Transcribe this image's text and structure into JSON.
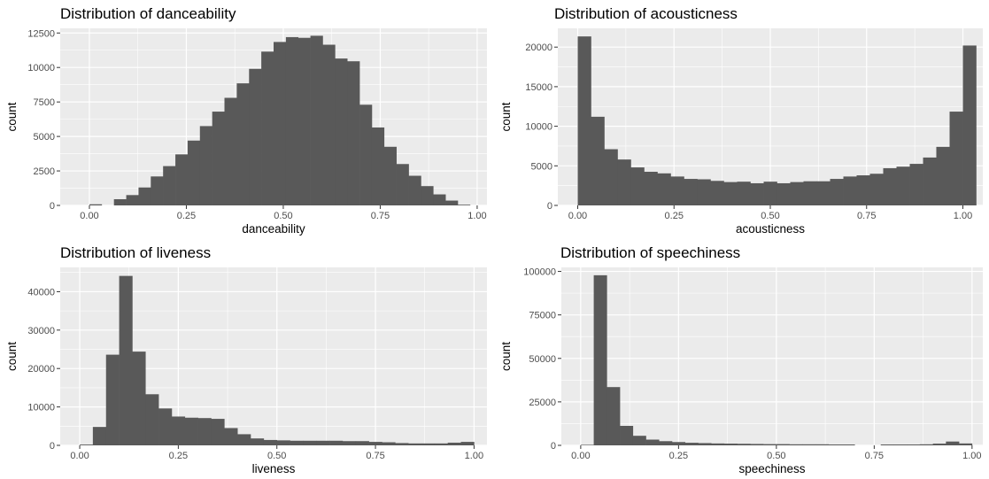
{
  "chart_data": [
    {
      "type": "bar",
      "title": "Distribution of danceability",
      "xlabel": "danceability",
      "ylabel": "count",
      "xlim": [
        -0.0753,
        1.0253
      ],
      "ylim": [
        0,
        12838
      ],
      "xticks": [
        0.0,
        0.25,
        0.5,
        0.75,
        1.0
      ],
      "xticklabels": [
        "0.00",
        "0.25",
        "0.50",
        "0.75",
        "1.00"
      ],
      "yticks": [
        0,
        2500,
        5000,
        7500,
        10000,
        12500
      ],
      "yticklabels": [
        "0",
        "2500",
        "5000",
        "7500",
        "10000",
        "12500"
      ],
      "bin_width": 0.03167,
      "bins": [
        0.0,
        0.0317,
        0.0633,
        0.095,
        0.1267,
        0.1583,
        0.19,
        0.2217,
        0.2533,
        0.285,
        0.3167,
        0.3483,
        0.38,
        0.4117,
        0.4433,
        0.475,
        0.5067,
        0.5383,
        0.57,
        0.6017,
        0.6333,
        0.665,
        0.6967,
        0.7283,
        0.76,
        0.7917,
        0.8233,
        0.855,
        0.8867,
        0.9183,
        0.95
      ],
      "values": [
        80,
        0,
        450,
        750,
        1300,
        2100,
        2850,
        3700,
        4700,
        5750,
        6800,
        7800,
        8850,
        9900,
        11150,
        11850,
        12200,
        12150,
        12300,
        11650,
        10650,
        10450,
        7300,
        5650,
        4250,
        3000,
        2150,
        1400,
        800,
        350,
        50
      ],
      "grid": true
    },
    {
      "type": "bar",
      "title": "Distribution of acousticness",
      "xlabel": "acousticness",
      "ylabel": "count",
      "xlim": [
        -0.0517,
        1.0517
      ],
      "ylim": [
        0,
        22372
      ],
      "xticks": [
        0.0,
        0.25,
        0.5,
        0.75,
        1.0
      ],
      "xticklabels": [
        "0.00",
        "0.25",
        "0.50",
        "0.75",
        "1.00"
      ],
      "yticks": [
        0,
        5000,
        10000,
        15000,
        20000
      ],
      "yticklabels": [
        "0",
        "5000",
        "10000",
        "15000",
        "20000"
      ],
      "bin_width": 0.03448,
      "bins": [
        0.0,
        0.0345,
        0.069,
        0.1034,
        0.1379,
        0.1724,
        0.2069,
        0.2414,
        0.2759,
        0.3103,
        0.3448,
        0.3793,
        0.4138,
        0.4483,
        0.4828,
        0.5172,
        0.5517,
        0.5862,
        0.6207,
        0.6552,
        0.6897,
        0.7241,
        0.7586,
        0.7931,
        0.8276,
        0.8621,
        0.8966,
        0.931,
        0.9655,
        1.0
      ],
      "values": [
        21350,
        11200,
        7100,
        5800,
        4800,
        4250,
        4050,
        3650,
        3350,
        3300,
        3100,
        2950,
        3000,
        2800,
        3000,
        2800,
        2950,
        3050,
        3050,
        3350,
        3650,
        3800,
        4000,
        4700,
        4900,
        5250,
        6050,
        7400,
        11850,
        20200
      ],
      "grid": true
    },
    {
      "type": "bar",
      "title": "Distribution of liveness",
      "xlabel": "liveness",
      "ylabel": "count",
      "xlim": [
        -0.0495,
        1.0328
      ],
      "ylim": [
        0,
        46320
      ],
      "xticks": [
        0.0,
        0.25,
        0.5,
        0.75,
        1.0
      ],
      "xticklabels": [
        "0.00",
        "0.25",
        "0.50",
        "0.75",
        "1.00"
      ],
      "yticks": [
        0,
        10000,
        20000,
        30000,
        40000
      ],
      "yticklabels": [
        "0",
        "10000",
        "20000",
        "30000",
        "40000"
      ],
      "bin_width": 0.03333,
      "bins": [
        0.0,
        0.0333,
        0.0667,
        0.1,
        0.1333,
        0.1667,
        0.2,
        0.2333,
        0.2667,
        0.3,
        0.3333,
        0.3667,
        0.4,
        0.4333,
        0.4667,
        0.5,
        0.5333,
        0.5667,
        0.6,
        0.6333,
        0.6667,
        0.7,
        0.7333,
        0.7667,
        0.8,
        0.8333,
        0.8667,
        0.9,
        0.9333,
        0.9667
      ],
      "values": [
        200,
        4800,
        23600,
        44100,
        24400,
        13300,
        9600,
        7500,
        7200,
        7100,
        6900,
        4500,
        2900,
        1800,
        1400,
        1300,
        1200,
        1200,
        1200,
        1200,
        1100,
        1100,
        900,
        800,
        600,
        500,
        500,
        500,
        700,
        900
      ],
      "grid": true
    },
    {
      "type": "bar",
      "title": "Distribution of speechiness",
      "xlabel": "speechiness",
      "ylabel": "count",
      "xlim": [
        -0.0495,
        1.0275
      ],
      "ylim": [
        0,
        102320
      ],
      "xticks": [
        0.0,
        0.25,
        0.5,
        0.75,
        1.0
      ],
      "xticklabels": [
        "0.00",
        "0.25",
        "0.50",
        "0.75",
        "1.00"
      ],
      "yticks": [
        0,
        25000,
        50000,
        75000,
        100000
      ],
      "yticklabels": [
        "0",
        "25000",
        "50000",
        "75000",
        "100000"
      ],
      "bin_width": 0.03333,
      "bins": [
        0.0,
        0.0333,
        0.0667,
        0.1,
        0.1333,
        0.1667,
        0.2,
        0.2333,
        0.2667,
        0.3,
        0.3333,
        0.3667,
        0.4,
        0.4333,
        0.4667,
        0.5,
        0.5333,
        0.5667,
        0.6,
        0.6333,
        0.6667,
        0.7,
        0.7333,
        0.7667,
        0.8,
        0.8333,
        0.8667,
        0.9,
        0.9333,
        0.9667
      ],
      "values": [
        300,
        97800,
        33500,
        11200,
        5500,
        3300,
        2400,
        1900,
        1500,
        1300,
        1100,
        1000,
        900,
        800,
        700,
        700,
        600,
        600,
        600,
        500,
        500,
        0,
        0,
        500,
        500,
        500,
        600,
        1000,
        2200,
        1100
      ],
      "grid": true
    }
  ]
}
